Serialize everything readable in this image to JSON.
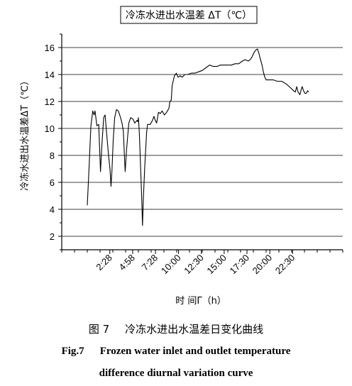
{
  "chart_data": {
    "type": "line",
    "title": "",
    "legend": "冷冻水进出水温差 ΔT（℃）",
    "legend_placement": "top",
    "xlabel": "时 间Γ（h）",
    "ylabel": "冷冻水进出水温差ΔT（℃）",
    "ylim": [
      1,
      17
    ],
    "yticks": [
      2,
      4,
      6,
      8,
      10,
      12,
      14,
      16
    ],
    "grid": "horizontal",
    "x_axis_unit": "hours",
    "xlim": [
      0,
      28
    ],
    "xtick_labels": [
      {
        "label": "2:28",
        "x": 2.47
      },
      {
        "label": "4:58",
        "x": 4.97
      },
      {
        "label": "7:28",
        "x": 7.47
      },
      {
        "label": "10:00",
        "x": 10.0
      },
      {
        "label": "12:30",
        "x": 12.5
      },
      {
        "label": "15:00",
        "x": 15.0
      },
      {
        "label": "17:30",
        "x": 17.5
      },
      {
        "label": "20:00",
        "x": 20.0
      },
      {
        "label": "22:30",
        "x": 22.5
      }
    ],
    "series": [
      {
        "name": "冷冻水进出水温差 ΔT（℃）",
        "color": "#000000",
        "points": [
          [
            0.0,
            4.3
          ],
          [
            0.2,
            7.2
          ],
          [
            0.4,
            10.2
          ],
          [
            0.6,
            11.3
          ],
          [
            0.75,
            11.0
          ],
          [
            0.85,
            11.3
          ],
          [
            1.05,
            10.2
          ],
          [
            1.25,
            10.3
          ],
          [
            1.45,
            6.8
          ],
          [
            1.6,
            8.8
          ],
          [
            1.8,
            10.8
          ],
          [
            1.95,
            11.0
          ],
          [
            2.1,
            9.8
          ],
          [
            2.3,
            8.2
          ],
          [
            2.5,
            6.9
          ],
          [
            2.6,
            5.7
          ],
          [
            2.7,
            6.8
          ],
          [
            2.85,
            9.2
          ],
          [
            3.0,
            10.8
          ],
          [
            3.2,
            11.4
          ],
          [
            3.4,
            11.3
          ],
          [
            3.6,
            10.9
          ],
          [
            3.8,
            10.4
          ],
          [
            3.95,
            9.8
          ],
          [
            4.1,
            7.5
          ],
          [
            4.15,
            6.8
          ],
          [
            4.3,
            8.4
          ],
          [
            4.55,
            10.4
          ],
          [
            4.75,
            10.8
          ],
          [
            5.0,
            10.7
          ],
          [
            5.2,
            10.4
          ],
          [
            5.45,
            10.6
          ],
          [
            5.55,
            10.5
          ],
          [
            5.6,
            10.8
          ],
          [
            5.7,
            9.7
          ],
          [
            5.85,
            7.0
          ],
          [
            5.98,
            4.5
          ],
          [
            6.05,
            2.8
          ],
          [
            6.15,
            4.9
          ],
          [
            6.3,
            7.2
          ],
          [
            6.5,
            9.7
          ],
          [
            6.6,
            10.3
          ],
          [
            6.9,
            10.3
          ],
          [
            7.15,
            10.6
          ],
          [
            7.3,
            10.9
          ],
          [
            7.45,
            10.6
          ],
          [
            7.6,
            10.4
          ],
          [
            7.8,
            11.2
          ],
          [
            8.0,
            11.1
          ],
          [
            8.2,
            11.3
          ],
          [
            8.45,
            11.0
          ],
          [
            8.7,
            11.2
          ],
          [
            8.95,
            11.5
          ],
          [
            9.05,
            12.0
          ],
          [
            9.2,
            12.1
          ],
          [
            9.3,
            13.2
          ],
          [
            9.55,
            13.9
          ],
          [
            9.75,
            14.1
          ],
          [
            9.95,
            13.8
          ],
          [
            10.2,
            13.9
          ],
          [
            10.4,
            13.8
          ],
          [
            10.7,
            14.0
          ],
          [
            11.0,
            14.0
          ],
          [
            11.4,
            14.1
          ],
          [
            11.8,
            14.1
          ],
          [
            12.2,
            14.2
          ],
          [
            12.6,
            14.3
          ],
          [
            13.0,
            14.5
          ],
          [
            13.4,
            14.7
          ],
          [
            13.8,
            14.6
          ],
          [
            14.2,
            14.6
          ],
          [
            14.6,
            14.7
          ],
          [
            15.0,
            14.7
          ],
          [
            15.4,
            14.7
          ],
          [
            15.8,
            14.7
          ],
          [
            16.2,
            14.8
          ],
          [
            16.6,
            14.8
          ],
          [
            17.0,
            15.0
          ],
          [
            17.3,
            15.1
          ],
          [
            17.65,
            15.0
          ],
          [
            17.85,
            15.1
          ],
          [
            18.05,
            15.3
          ],
          [
            18.25,
            15.6
          ],
          [
            18.45,
            15.8
          ],
          [
            18.65,
            15.9
          ],
          [
            18.8,
            15.6
          ],
          [
            18.95,
            15.2
          ],
          [
            19.15,
            14.7
          ],
          [
            19.3,
            14.2
          ],
          [
            19.45,
            13.8
          ],
          [
            19.6,
            13.6
          ],
          [
            19.75,
            13.6
          ],
          [
            20.0,
            13.6
          ],
          [
            20.4,
            13.6
          ],
          [
            20.8,
            13.5
          ],
          [
            21.3,
            13.5
          ],
          [
            21.8,
            13.3
          ],
          [
            22.3,
            13.0
          ],
          [
            22.6,
            12.8
          ],
          [
            22.8,
            12.7
          ],
          [
            22.95,
            13.1
          ],
          [
            23.1,
            12.7
          ],
          [
            23.3,
            12.5
          ],
          [
            23.45,
            12.9
          ],
          [
            23.55,
            13.1
          ],
          [
            23.7,
            12.8
          ],
          [
            23.85,
            12.6
          ],
          [
            24.0,
            12.6
          ],
          [
            24.15,
            12.8
          ],
          [
            24.25,
            12.7
          ]
        ]
      }
    ]
  },
  "caption": {
    "cn_number": "图 7",
    "cn_text": "冷冻水进出水温差日变化曲线",
    "en_number": "Fig.7",
    "en_line1": "Frozen water inlet and outlet temperature",
    "en_line2": "difference diurnal variation curve"
  }
}
